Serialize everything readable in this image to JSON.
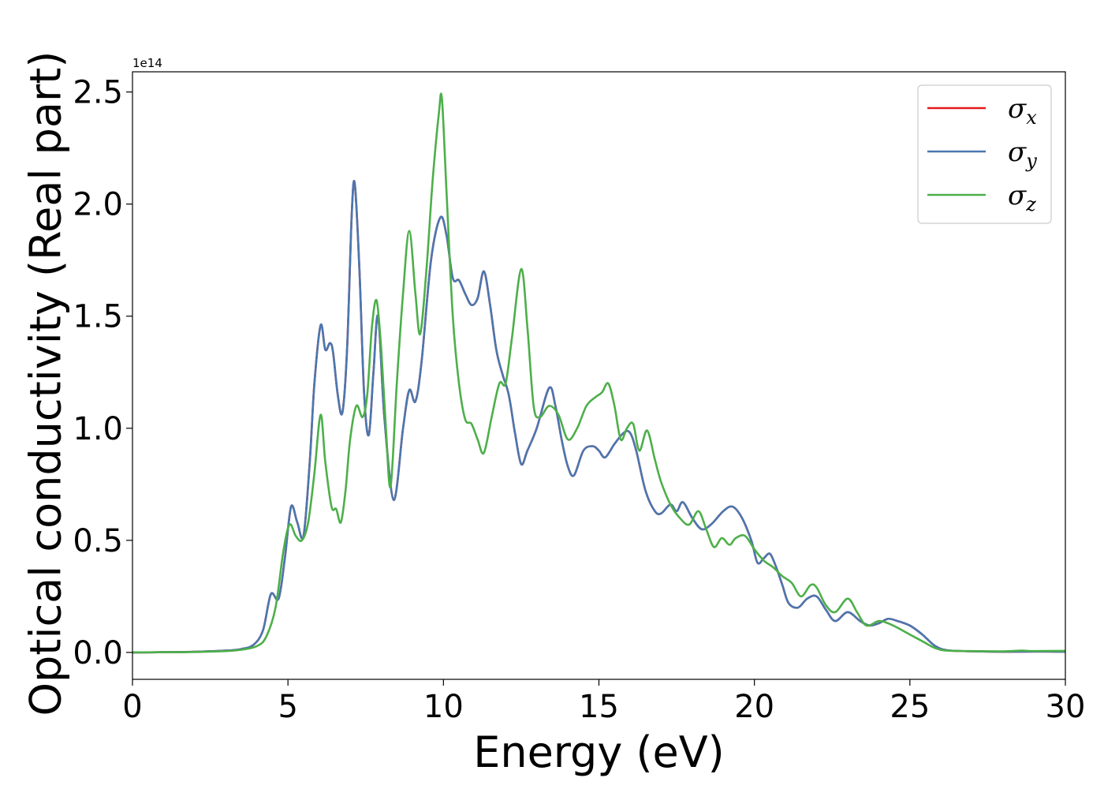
{
  "chart_data": {
    "type": "line",
    "title": "",
    "xlabel": "Energy (eV)",
    "ylabel": "Optical conductivity (Real part)",
    "y_offset_text": "1e14",
    "xlim": [
      0,
      30
    ],
    "ylim": [
      -0.12,
      2.59
    ],
    "y_unit_multiplier": 100000000000000.0,
    "xticks": [
      0,
      5,
      10,
      15,
      20,
      25,
      30
    ],
    "xtick_labels": [
      "0",
      "5",
      "10",
      "15",
      "20",
      "25",
      "30"
    ],
    "yticks": [
      0.0,
      0.5,
      1.0,
      1.5,
      2.0,
      2.5
    ],
    "ytick_labels": [
      "0.0",
      "0.5",
      "1.0",
      "1.5",
      "2.0",
      "2.5"
    ],
    "grid": false,
    "legend_position": "top-right",
    "series": [
      {
        "name": "σx",
        "symbol": "σ",
        "subscript": "x",
        "color": "#e41a1c",
        "x": [
          0,
          1,
          2,
          3,
          3.5,
          3.9,
          4.2,
          4.45,
          4.7,
          4.9,
          5.1,
          5.3,
          5.5,
          5.7,
          5.85,
          6.05,
          6.2,
          6.35,
          6.45,
          6.6,
          6.75,
          6.9,
          7.05,
          7.15,
          7.3,
          7.45,
          7.6,
          7.75,
          7.9,
          8.1,
          8.4,
          8.7,
          8.9,
          9.1,
          9.3,
          9.6,
          9.9,
          10.1,
          10.3,
          10.5,
          10.7,
          10.9,
          11.1,
          11.3,
          11.5,
          11.7,
          11.9,
          12.1,
          12.3,
          12.5,
          12.7,
          13.0,
          13.4,
          13.6,
          13.8,
          14.0,
          14.2,
          14.5,
          14.8,
          15.0,
          15.2,
          15.5,
          15.8,
          16.0,
          16.2,
          16.5,
          16.8,
          17.0,
          17.3,
          17.5,
          17.7,
          18.0,
          18.3,
          18.6,
          19.0,
          19.3,
          19.6,
          19.9,
          20.1,
          20.3,
          20.5,
          20.7,
          20.9,
          21.1,
          21.4,
          21.7,
          22.0,
          22.3,
          22.6,
          23.0,
          23.4,
          23.7,
          24.0,
          24.3,
          24.6,
          25.0,
          25.4,
          25.8,
          26.2,
          27.0,
          28.0,
          29.0,
          30.0
        ],
        "y": [
          0,
          0.001,
          0.003,
          0.008,
          0.015,
          0.035,
          0.1,
          0.26,
          0.24,
          0.42,
          0.65,
          0.58,
          0.52,
          0.85,
          1.2,
          1.46,
          1.35,
          1.38,
          1.34,
          1.15,
          1.07,
          1.35,
          1.95,
          2.09,
          1.7,
          1.15,
          0.97,
          1.25,
          1.5,
          1.05,
          0.68,
          1.0,
          1.17,
          1.12,
          1.3,
          1.75,
          1.94,
          1.86,
          1.67,
          1.66,
          1.6,
          1.55,
          1.58,
          1.7,
          1.55,
          1.35,
          1.24,
          1.15,
          0.98,
          0.84,
          0.9,
          1.0,
          1.18,
          1.1,
          0.95,
          0.83,
          0.79,
          0.9,
          0.92,
          0.9,
          0.87,
          0.93,
          0.98,
          0.98,
          0.9,
          0.72,
          0.63,
          0.62,
          0.66,
          0.63,
          0.67,
          0.6,
          0.55,
          0.57,
          0.63,
          0.65,
          0.6,
          0.5,
          0.4,
          0.42,
          0.44,
          0.38,
          0.3,
          0.22,
          0.2,
          0.24,
          0.25,
          0.19,
          0.14,
          0.18,
          0.14,
          0.12,
          0.13,
          0.15,
          0.14,
          0.12,
          0.08,
          0.03,
          0.01,
          0.005,
          0.003,
          0.004,
          0.003
        ]
      },
      {
        "name": "σy",
        "symbol": "σ",
        "subscript": "y",
        "color": "#4a77b0",
        "x": [
          0,
          1,
          2,
          3,
          3.5,
          3.9,
          4.2,
          4.45,
          4.7,
          4.9,
          5.1,
          5.3,
          5.5,
          5.7,
          5.85,
          6.05,
          6.2,
          6.35,
          6.45,
          6.6,
          6.75,
          6.9,
          7.05,
          7.15,
          7.3,
          7.45,
          7.6,
          7.75,
          7.9,
          8.1,
          8.4,
          8.7,
          8.9,
          9.1,
          9.3,
          9.6,
          9.9,
          10.1,
          10.3,
          10.5,
          10.7,
          10.9,
          11.1,
          11.3,
          11.5,
          11.7,
          11.9,
          12.1,
          12.3,
          12.5,
          12.7,
          13.0,
          13.4,
          13.6,
          13.8,
          14.0,
          14.2,
          14.5,
          14.8,
          15.0,
          15.2,
          15.5,
          15.8,
          16.0,
          16.2,
          16.5,
          16.8,
          17.0,
          17.3,
          17.5,
          17.7,
          18.0,
          18.3,
          18.6,
          19.0,
          19.3,
          19.6,
          19.9,
          20.1,
          20.3,
          20.5,
          20.7,
          20.9,
          21.1,
          21.4,
          21.7,
          22.0,
          22.3,
          22.6,
          23.0,
          23.4,
          23.7,
          24.0,
          24.3,
          24.6,
          25.0,
          25.4,
          25.8,
          26.2,
          27.0,
          28.0,
          29.0,
          30.0
        ],
        "y": [
          0,
          0.001,
          0.003,
          0.008,
          0.015,
          0.035,
          0.1,
          0.26,
          0.24,
          0.42,
          0.65,
          0.58,
          0.52,
          0.85,
          1.2,
          1.46,
          1.35,
          1.38,
          1.34,
          1.15,
          1.07,
          1.35,
          1.95,
          2.09,
          1.7,
          1.15,
          0.97,
          1.25,
          1.5,
          1.05,
          0.68,
          1.0,
          1.17,
          1.12,
          1.3,
          1.75,
          1.94,
          1.86,
          1.67,
          1.66,
          1.6,
          1.55,
          1.58,
          1.7,
          1.55,
          1.35,
          1.24,
          1.15,
          0.98,
          0.84,
          0.9,
          1.0,
          1.18,
          1.1,
          0.95,
          0.83,
          0.79,
          0.9,
          0.92,
          0.9,
          0.87,
          0.93,
          0.98,
          0.98,
          0.9,
          0.72,
          0.63,
          0.62,
          0.66,
          0.63,
          0.67,
          0.6,
          0.55,
          0.57,
          0.63,
          0.65,
          0.6,
          0.5,
          0.4,
          0.42,
          0.44,
          0.38,
          0.3,
          0.22,
          0.2,
          0.24,
          0.25,
          0.19,
          0.14,
          0.18,
          0.14,
          0.12,
          0.13,
          0.15,
          0.14,
          0.12,
          0.08,
          0.03,
          0.01,
          0.005,
          0.003,
          0.004,
          0.003
        ]
      },
      {
        "name": "σz",
        "symbol": "σ",
        "subscript": "z",
        "color": "#4daf4a",
        "x": [
          0,
          1,
          2,
          3,
          3.5,
          4.0,
          4.3,
          4.6,
          4.85,
          5.05,
          5.25,
          5.45,
          5.65,
          5.85,
          6.05,
          6.2,
          6.4,
          6.55,
          6.7,
          6.85,
          7.0,
          7.2,
          7.4,
          7.55,
          7.7,
          7.85,
          8.0,
          8.15,
          8.3,
          8.5,
          8.7,
          8.9,
          9.1,
          9.25,
          9.45,
          9.65,
          9.85,
          9.95,
          10.1,
          10.3,
          10.5,
          10.7,
          10.9,
          11.1,
          11.3,
          11.55,
          11.8,
          12.0,
          12.2,
          12.5,
          12.7,
          12.9,
          13.1,
          13.4,
          13.7,
          14.0,
          14.3,
          14.6,
          14.9,
          15.1,
          15.3,
          15.5,
          15.7,
          15.9,
          16.1,
          16.3,
          16.55,
          16.8,
          17.0,
          17.3,
          17.6,
          17.9,
          18.2,
          18.45,
          18.7,
          18.95,
          19.2,
          19.4,
          19.7,
          20.0,
          20.3,
          20.6,
          20.9,
          21.2,
          21.5,
          21.8,
          22.0,
          22.3,
          22.6,
          23.0,
          23.3,
          23.6,
          24.0,
          24.3,
          24.6,
          25.0,
          25.4,
          25.8,
          26.2,
          27.0,
          28.0,
          28.6,
          29.0,
          30.0
        ],
        "y": [
          0,
          0.001,
          0.002,
          0.006,
          0.012,
          0.028,
          0.07,
          0.2,
          0.45,
          0.57,
          0.52,
          0.5,
          0.58,
          0.8,
          1.06,
          0.85,
          0.65,
          0.64,
          0.58,
          0.72,
          0.95,
          1.1,
          1.05,
          1.15,
          1.45,
          1.57,
          1.35,
          1.0,
          0.74,
          1.2,
          1.6,
          1.88,
          1.6,
          1.42,
          1.7,
          2.1,
          2.4,
          2.47,
          2.05,
          1.5,
          1.2,
          1.04,
          1.02,
          0.95,
          0.89,
          1.05,
          1.2,
          1.2,
          1.4,
          1.71,
          1.45,
          1.1,
          1.05,
          1.1,
          1.06,
          0.95,
          1.0,
          1.1,
          1.14,
          1.16,
          1.2,
          1.1,
          0.95,
          1.0,
          1.02,
          0.9,
          0.99,
          0.86,
          0.76,
          0.66,
          0.6,
          0.57,
          0.63,
          0.55,
          0.47,
          0.51,
          0.48,
          0.51,
          0.52,
          0.46,
          0.41,
          0.38,
          0.34,
          0.31,
          0.25,
          0.3,
          0.29,
          0.21,
          0.18,
          0.24,
          0.18,
          0.12,
          0.14,
          0.13,
          0.11,
          0.08,
          0.05,
          0.02,
          0.008,
          0.006,
          0.005,
          0.008,
          0.006,
          0.007
        ]
      }
    ]
  }
}
